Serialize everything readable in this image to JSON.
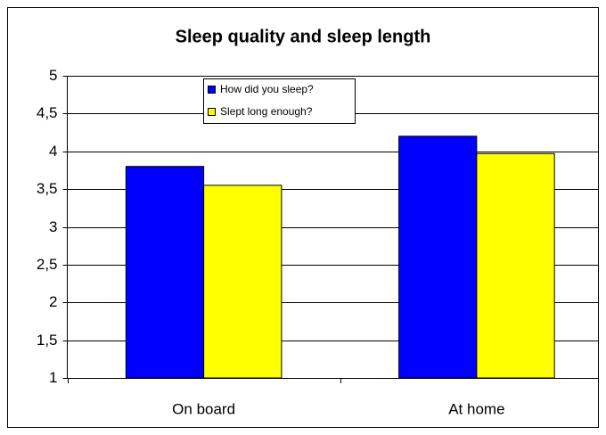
{
  "chart_data": {
    "type": "bar",
    "title": "Sleep quality and sleep length",
    "categories": [
      "On board",
      "At home"
    ],
    "series": [
      {
        "name": "How did you sleep?",
        "color": "#0000ff",
        "values": [
          3.8,
          4.2
        ]
      },
      {
        "name": "Slept long enough?",
        "color": "#ffff00",
        "values": [
          3.55,
          3.97
        ]
      }
    ],
    "ylim": [
      1,
      5
    ],
    "yticks": [
      1,
      {
        "value": 1.5,
        "label": "1,5"
      },
      2,
      {
        "value": 2.5,
        "label": "2,5"
      },
      3,
      {
        "value": 3.5,
        "label": "3,5"
      },
      4,
      {
        "value": 4.5,
        "label": "4,5"
      },
      5
    ],
    "grid": true,
    "legend": "top-left"
  }
}
